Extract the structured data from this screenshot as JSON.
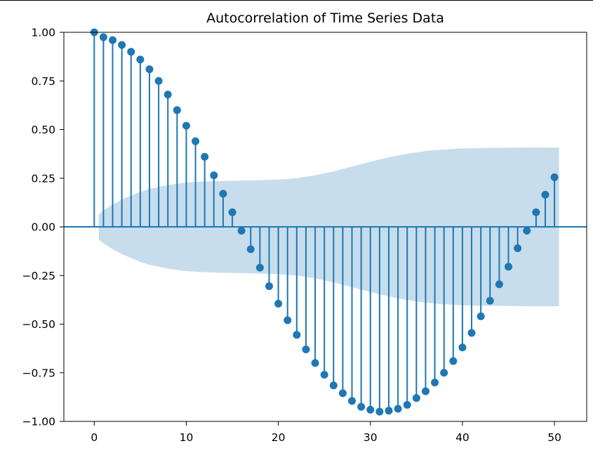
{
  "chart_data": {
    "type": "stem",
    "title": "Autocorrelation of Time Series Data",
    "xlabel": "",
    "ylabel": "",
    "xlim": [
      -3.3,
      53.5
    ],
    "ylim": [
      -1.0,
      1.0
    ],
    "x_ticks": [
      0,
      10,
      20,
      30,
      40,
      50
    ],
    "y_ticks": [
      1.0,
      0.75,
      0.5,
      0.25,
      0.0,
      -0.25,
      -0.5,
      -0.75,
      -1.0
    ],
    "x_tick_labels": [
      "0",
      "10",
      "20",
      "30",
      "40",
      "50"
    ],
    "y_tick_labels": [
      "1.00",
      "0.75",
      "0.50",
      "0.25",
      "0.00",
      "−0.25",
      "−0.50",
      "−0.75",
      "−1.00"
    ],
    "grid": false,
    "colors": {
      "stem": "#1f77b4",
      "confidence_band": "#1f77b4"
    },
    "series": [
      {
        "lags": [
          0,
          1,
          2,
          3,
          4,
          5,
          6,
          7,
          8,
          9,
          10,
          11,
          12,
          13,
          14,
          15,
          16,
          17,
          18,
          19,
          20,
          21,
          22,
          23,
          24,
          25,
          26,
          27,
          28,
          29,
          30,
          31,
          32,
          33,
          34,
          35,
          36,
          37,
          38,
          39,
          40,
          41,
          42,
          43,
          44,
          45,
          46,
          47,
          48,
          49,
          50
        ],
        "values": [
          1.0,
          0.975,
          0.96,
          0.935,
          0.9,
          0.86,
          0.81,
          0.75,
          0.68,
          0.6,
          0.52,
          0.44,
          0.36,
          0.265,
          0.17,
          0.075,
          -0.02,
          -0.115,
          -0.21,
          -0.305,
          -0.395,
          -0.48,
          -0.555,
          -0.63,
          -0.7,
          -0.76,
          -0.815,
          -0.855,
          -0.895,
          -0.925,
          -0.94,
          -0.95,
          -0.945,
          -0.935,
          -0.915,
          -0.88,
          -0.845,
          -0.8,
          -0.75,
          -0.69,
          -0.62,
          -0.545,
          -0.46,
          -0.38,
          -0.295,
          -0.205,
          -0.11,
          -0.02,
          0.075,
          0.165,
          0.255
        ]
      }
    ],
    "confidence_band": {
      "lags": [
        0.5,
        1,
        2,
        3,
        4,
        5,
        6,
        7,
        8,
        9,
        10,
        12,
        14,
        16,
        18,
        20,
        22,
        24,
        26,
        28,
        30,
        32,
        34,
        36,
        38,
        40,
        42,
        44,
        46,
        48,
        50,
        50.5
      ],
      "upper": [
        0.065,
        0.085,
        0.115,
        0.14,
        0.16,
        0.18,
        0.195,
        0.205,
        0.215,
        0.222,
        0.228,
        0.233,
        0.236,
        0.238,
        0.24,
        0.243,
        0.25,
        0.265,
        0.285,
        0.31,
        0.335,
        0.358,
        0.376,
        0.39,
        0.398,
        0.403,
        0.405,
        0.406,
        0.407,
        0.408,
        0.408,
        0.408
      ]
    }
  }
}
